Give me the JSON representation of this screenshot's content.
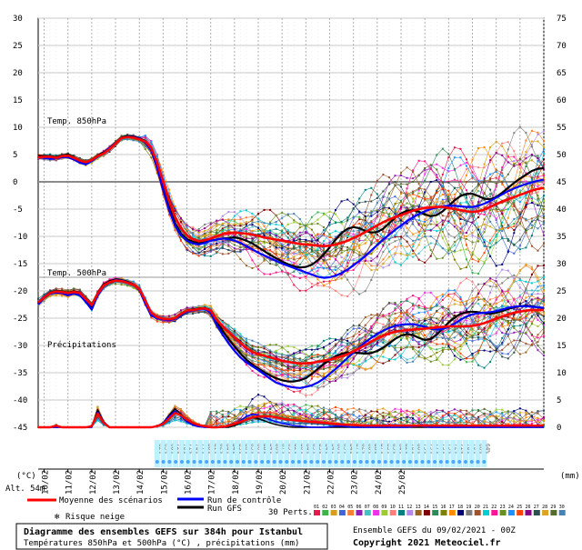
{
  "chart_data": {
    "type": "line",
    "panels": {
      "t850": {
        "label": "Temp. 850hPa",
        "mean": [
          4.5,
          4.6,
          4.6,
          4.4,
          4.7,
          4.8,
          4.4,
          3.9,
          3.6,
          4,
          4.7,
          5.2,
          6,
          7,
          8,
          8.2,
          8.1,
          7.8,
          7.4,
          6.2,
          3.6,
          0,
          -3.5,
          -6.5,
          -8.5,
          -9.8,
          -10.5,
          -10.9,
          -10.7,
          -10.4,
          -10,
          -9.6,
          -9.4,
          -9.3,
          -9.4,
          -9.5,
          -9.7,
          -9.9,
          -10.2,
          -10.4,
          -10.6,
          -10.8,
          -11,
          -11.2,
          -11.4,
          -11.5,
          -11.6,
          -11.7,
          -11.8,
          -11.7,
          -11.5,
          -11.2,
          -10.8,
          -10.3,
          -9.8,
          -9.2,
          -8.6,
          -8,
          -7.4,
          -6.9,
          -6.5,
          -6.1,
          -5.7,
          -5.3,
          -5,
          -4.8,
          -4.7,
          -4.6,
          -4.6,
          -4.8,
          -5,
          -5.2,
          -5.4,
          -5.5,
          -5.4,
          -5.1,
          -4.6,
          -4.1,
          -3.6,
          -3.2,
          -2.8,
          -2.4,
          -2,
          -1.6,
          -1.3,
          -1.1
        ],
        "control": [
          4.6,
          4.4,
          4.2,
          4.3,
          4.5,
          4.5,
          4.1,
          3.5,
          3.2,
          3.8,
          4.6,
          5.3,
          6.2,
          7.1,
          8,
          8.3,
          8.2,
          7.9,
          7.2,
          5.8,
          2.6,
          -1.5,
          -5.2,
          -8,
          -9.8,
          -10.8,
          -11.3,
          -11.5,
          -11.2,
          -10.8,
          -10.6,
          -10.4,
          -10.5,
          -10.8,
          -11.2,
          -11.8,
          -12.4,
          -13,
          -13.5,
          -14,
          -14.5,
          -15,
          -15.4,
          -15.8,
          -16.2,
          -16.6,
          -17,
          -17.4,
          -17.6,
          -17.5,
          -17.2,
          -16.7,
          -16.1,
          -15.3,
          -14.5,
          -13.6,
          -12.6,
          -11.6,
          -10.6,
          -9.7,
          -8.8,
          -8,
          -7.2,
          -6.5,
          -5.9,
          -5.4,
          -5,
          -4.7,
          -4.5,
          -4.4,
          -4.4,
          -4.5,
          -4.6,
          -4.6,
          -4.4,
          -4,
          -3.5,
          -2.9,
          -2.3,
          -1.7,
          -1.2,
          -0.8,
          -0.4,
          -0.1,
          0.2,
          0.4
        ],
        "gfs": [
          4.8,
          4.7,
          4.7,
          4.5,
          4.8,
          5,
          4.5,
          3.8,
          3.4,
          3.9,
          4.8,
          5.4,
          6.1,
          7.1,
          8.1,
          8.4,
          8.3,
          8,
          7.5,
          6.2,
          3,
          -1,
          -4.5,
          -7.5,
          -9.5,
          -10.5,
          -11,
          -11.2,
          -11,
          -10.8,
          -10.6,
          -10.4,
          -10.3,
          -10.2,
          -10.4,
          -10.8,
          -11.3,
          -12,
          -12.7,
          -13.4,
          -14,
          -14.6,
          -15.1,
          -15.5,
          -15.7,
          -15.6,
          -15.2,
          -14.4,
          -13.3,
          -12,
          -10.6,
          -9.4,
          -8.6,
          -8.3,
          -8.5,
          -9,
          -9.3,
          -9.2,
          -8.6,
          -7.6,
          -6.6,
          -5.8,
          -5.3,
          -5.2,
          -5.5,
          -6,
          -6.3,
          -6.1,
          -5.4,
          -4.4,
          -3.4,
          -2.6,
          -2.2,
          -2.2,
          -2.6,
          -3.1,
          -3.2,
          -2.8,
          -2,
          -1.1,
          -0.2,
          0.6,
          1.3,
          2,
          2.4,
          2.5
        ]
      },
      "t500": {
        "label": "Temp. 500hPa",
        "mean": [
          -22.1,
          -21.2,
          -20.4,
          -20.1,
          -20.2,
          -20.4,
          -20.2,
          -20.4,
          -21.5,
          -22.6,
          -20.5,
          -19,
          -18.4,
          -18.1,
          -18.2,
          -18.5,
          -18.9,
          -19.6,
          -21.8,
          -24,
          -24.8,
          -25.1,
          -25.2,
          -25,
          -24.2,
          -23.6,
          -23.5,
          -23.3,
          -23.2,
          -23.6,
          -25.3,
          -26.5,
          -27.5,
          -28.5,
          -29.5,
          -30.5,
          -31.2,
          -31.6,
          -31.9,
          -32.2,
          -32.5,
          -32.8,
          -33,
          -33.2,
          -33.3,
          -33.3,
          -33.2,
          -33,
          -32.8,
          -32.6,
          -32.3,
          -32,
          -31.6,
          -31.1,
          -30.5,
          -29.9,
          -29.3,
          -28.7,
          -28.2,
          -27.8,
          -27.5,
          -27.3,
          -27.2,
          -27.1,
          -27,
          -26.9,
          -26.8,
          -26.7,
          -26.6,
          -26.5,
          -26.5,
          -26.5,
          -26.5,
          -26.4,
          -26.2,
          -25.9,
          -25.5,
          -25.1,
          -24.7,
          -24.3,
          -24,
          -23.8,
          -23.6,
          -23.5,
          -23.5,
          -23.5
        ],
        "control": [
          -22.5,
          -21.3,
          -20.5,
          -20.3,
          -20.4,
          -20.8,
          -20.5,
          -20.8,
          -22,
          -23.4,
          -20.8,
          -19.1,
          -18.4,
          -18,
          -18.1,
          -18.4,
          -18.8,
          -19.8,
          -22.3,
          -24.5,
          -25,
          -25.2,
          -25.4,
          -25.1,
          -24.4,
          -23.8,
          -23.6,
          -23.4,
          -23.3,
          -24,
          -26.2,
          -28,
          -29.6,
          -31,
          -32.2,
          -33.1,
          -33.8,
          -34.5,
          -35.3,
          -36.1,
          -36.8,
          -37.2,
          -37.5,
          -37.7,
          -37.8,
          -37.6,
          -37.3,
          -36.8,
          -36.1,
          -35.2,
          -34.3,
          -33.3,
          -32.3,
          -31.3,
          -30.3,
          -29.4,
          -28.6,
          -27.9,
          -27.3,
          -26.8,
          -26.4,
          -26.2,
          -26.1,
          -26.1,
          -26.3,
          -26.6,
          -26.9,
          -27.1,
          -27,
          -26.6,
          -26,
          -25.3,
          -24.7,
          -24.3,
          -24.1,
          -24,
          -23.9,
          -23.7,
          -23.4,
          -23.1,
          -22.9,
          -22.8,
          -22.8,
          -22.9,
          -23,
          -23.1
        ],
        "gfs": [
          -22.3,
          -21.1,
          -20.3,
          -20,
          -20.1,
          -20.3,
          -20.1,
          -20.4,
          -21.7,
          -23.1,
          -20.4,
          -18.8,
          -18.2,
          -17.9,
          -18,
          -18.3,
          -18.8,
          -19.6,
          -22,
          -24.2,
          -24.9,
          -25.2,
          -25.3,
          -25,
          -24.2,
          -23.6,
          -23.4,
          -23.2,
          -23.1,
          -23.7,
          -25.6,
          -27.3,
          -28.8,
          -30.2,
          -31.5,
          -32.6,
          -33.5,
          -34.2,
          -34.9,
          -35.5,
          -36,
          -36.4,
          -36.6,
          -36.6,
          -36.4,
          -36,
          -35.2,
          -34.3,
          -33.4,
          -32.6,
          -32,
          -31.5,
          -31.3,
          -31.3,
          -31.4,
          -31.5,
          -31.4,
          -31,
          -30.4,
          -29.6,
          -28.8,
          -28.2,
          -27.9,
          -28.1,
          -28.6,
          -29,
          -28.8,
          -28,
          -26.9,
          -25.8,
          -24.9,
          -24.2,
          -23.9,
          -23.8,
          -23.9,
          -24.1,
          -24.2,
          -24,
          -23.7,
          -23.3,
          -23,
          -22.8,
          -22.7,
          -22.8,
          -23,
          -23.2
        ]
      },
      "precip": {
        "label": "Précipitations",
        "mean": [
          0,
          0,
          0,
          0.3,
          0,
          0,
          0,
          0,
          0,
          0.2,
          2.5,
          0.8,
          0,
          0,
          0,
          0,
          0,
          0,
          0,
          0,
          0.2,
          0.6,
          1.6,
          2.6,
          2.2,
          1.4,
          0.8,
          0.4,
          0.2,
          0,
          0,
          0.1,
          0.3,
          0.6,
          1,
          1.4,
          1.8,
          2,
          2,
          2,
          1.8,
          1.6,
          1.4,
          1.3,
          1.2,
          1.1,
          1,
          0.9,
          0.8,
          0.7,
          0.6,
          0.5,
          0.45,
          0.4,
          0.35,
          0.3,
          0.3,
          0.3,
          0.3,
          0.3,
          0.3,
          0.3,
          0.3,
          0.3,
          0.3,
          0.3,
          0.3,
          0.3,
          0.3,
          0.3,
          0.3,
          0.3,
          0.3,
          0.3,
          0.3,
          0.3,
          0.3,
          0.3,
          0.3,
          0.3,
          0.3,
          0.3,
          0.3,
          0.3,
          0.3,
          0.3
        ],
        "control": [
          0,
          0,
          0,
          0,
          0,
          0,
          0,
          0,
          0,
          0,
          2.8,
          1,
          0,
          0,
          0,
          0,
          0,
          0,
          0,
          0,
          0.2,
          0.8,
          2,
          3,
          2,
          1,
          0.4,
          0.1,
          0,
          0,
          0,
          0,
          0.2,
          0.6,
          1.2,
          2,
          2.4,
          2.2,
          1.8,
          1.4,
          1,
          0.7,
          0.5,
          0.3,
          0.2,
          0.1,
          0,
          0,
          0,
          0.1,
          0.2,
          0.2,
          0.1,
          0,
          0,
          0,
          0,
          0,
          0,
          0,
          0,
          0,
          0,
          0.1,
          0.2,
          0.1,
          0,
          0,
          0,
          0,
          0,
          0,
          0,
          0,
          0,
          0,
          0,
          0,
          0,
          0,
          0,
          0,
          0,
          0,
          0,
          0
        ],
        "gfs": [
          0,
          0,
          0,
          0,
          0,
          0,
          0,
          0,
          0,
          0,
          3.2,
          1,
          0,
          0,
          0,
          0,
          0,
          0,
          0,
          0,
          0.2,
          0.8,
          2.2,
          3.4,
          2.4,
          1.2,
          0.5,
          0.2,
          0,
          0,
          0,
          0,
          0,
          0.3,
          0.8,
          1.4,
          1.8,
          1.6,
          1.2,
          0.8,
          0.5,
          0.3,
          0.1,
          0,
          0,
          0,
          0,
          0,
          0,
          0,
          0,
          0,
          0,
          0,
          0,
          0,
          0,
          0,
          0,
          0,
          0,
          0,
          0,
          0,
          0,
          0,
          0,
          0,
          0,
          0,
          0,
          0,
          0,
          0,
          0,
          0,
          0,
          0,
          0,
          0,
          0,
          0,
          0,
          0,
          0,
          0
        ]
      }
    },
    "x_labels": [
      "10/02",
      "11/02",
      "12/02",
      "13/02",
      "14/02",
      "15/02",
      "16/02",
      "17/02",
      "18/02",
      "19/02",
      "20/02",
      "21/02",
      "22/02",
      "23/02",
      "24/02",
      "25/02"
    ],
    "x_first_label": "(°C)",
    "left_ticks": [
      30,
      25,
      20,
      15,
      10,
      5,
      0,
      -5,
      -10,
      -15,
      -20,
      -25,
      -30,
      -35,
      -40,
      -45
    ],
    "right_ticks": [
      75,
      70,
      65,
      60,
      55,
      50,
      45,
      40,
      35,
      30,
      25,
      20,
      15,
      10,
      5,
      0
    ],
    "right_unit": "(mm)",
    "alt_label": "Alt. 54m",
    "snow_pct": [
      "62%",
      "63%",
      "68%",
      "72%",
      "70%",
      "71%",
      "74%",
      "77%",
      "80%",
      "81%",
      "82%",
      "84%",
      "84%",
      "85%",
      "86%",
      "83%",
      "86%",
      "88%",
      "84%",
      "86%",
      "87%",
      "85%",
      "82%",
      "80%",
      "84%",
      "83%",
      "83%",
      "84%",
      "84%",
      "86%",
      "85%",
      "84%",
      "87%",
      "82%",
      "88%",
      "86%",
      "87%",
      "85%",
      "85%",
      "84%",
      "82%",
      "76%",
      "80%",
      "75%",
      "79%",
      "77%",
      "75%",
      "73%",
      "72%",
      "71%",
      "70%",
      "70%",
      "66%",
      "64%"
    ]
  },
  "legend": {
    "mean": "Moyenne des scénarios",
    "control": "Run de contrôle",
    "gfs": "Run GFS",
    "perts": "30 Perts.",
    "snow": "Risque neige",
    "pert_numbers": [
      "01",
      "02",
      "03",
      "04",
      "05",
      "06",
      "07",
      "08",
      "09",
      "10",
      "11",
      "12",
      "13",
      "14",
      "15",
      "16",
      "17",
      "18",
      "19",
      "20",
      "21",
      "22",
      "23",
      "24",
      "25",
      "26",
      "27",
      "28",
      "29",
      "30"
    ]
  },
  "footer": {
    "title": "Diagramme des ensembles GEFS sur 384h pour Istanbul",
    "subtitle": "Températures 850hPa et 500hPa (°C) , précipitations (mm)",
    "run": "Ensemble GEFS du 09/02/2021 - 00Z",
    "copyright": "Copyright 2021 Meteociel.fr"
  },
  "colors": {
    "mean": "#ff0000",
    "control": "#0000ff",
    "gfs": "#000000",
    "perts": [
      "#e6194b",
      "#3cb44b",
      "#d4a017",
      "#4363d8",
      "#f58231",
      "#911eb4",
      "#46c0c0",
      "#f032e6",
      "#9acd32",
      "#ff7f7f",
      "#008080",
      "#b388eb",
      "#9a6324",
      "#800000",
      "#2e8b57",
      "#808000",
      "#ff8c00",
      "#000075",
      "#808080",
      "#a0522d",
      "#00ced1",
      "#ff1493",
      "#6b8e23",
      "#1e90ff",
      "#ff4500",
      "#8b008b",
      "#2f4f4f",
      "#daa520",
      "#556b2f",
      "#4682b4"
    ]
  }
}
